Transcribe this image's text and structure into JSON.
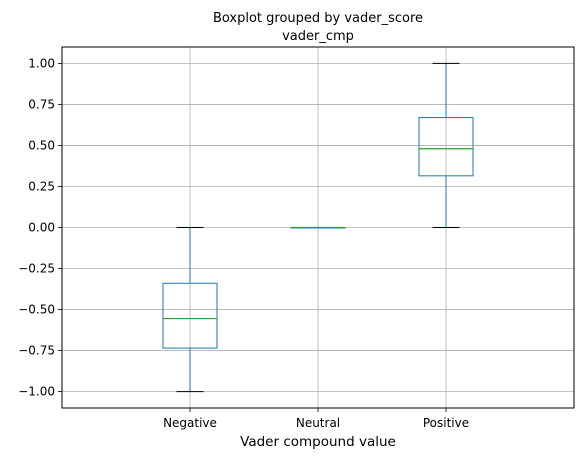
{
  "chart_data": {
    "type": "box",
    "title": "Boxplot grouped by vader_score",
    "subtitle": "vader_cmp",
    "xlabel": "Vader compound value",
    "ylabel": "",
    "ylim": [
      -1.1,
      1.1
    ],
    "yticks": [
      -1.0,
      -0.75,
      -0.5,
      -0.25,
      0.0,
      0.25,
      0.5,
      0.75,
      1.0
    ],
    "ytick_labels": [
      "−1.00",
      "−0.75",
      "−0.50",
      "−0.25",
      "0.00",
      "0.25",
      "0.50",
      "0.75",
      "1.00"
    ],
    "categories": [
      "Negative",
      "Neutral",
      "Positive"
    ],
    "boxes": [
      {
        "category": "Negative",
        "whisker_low": -1.0,
        "q1": -0.735,
        "median": -0.555,
        "q3": -0.34,
        "whisker_high": 0.0
      },
      {
        "category": "Neutral",
        "whisker_low": 0.0,
        "q1": 0.0,
        "median": 0.0,
        "q3": 0.0,
        "whisker_high": 0.0
      },
      {
        "category": "Positive",
        "whisker_low": 0.0,
        "q1": 0.315,
        "median": 0.48,
        "q3": 0.67,
        "whisker_high": 1.0
      }
    ],
    "grid": true,
    "colors": {
      "box": "#1f77b4",
      "median": "#2ca02c",
      "whisker_cap": "#000000",
      "grid": "#b0b0b0"
    }
  }
}
